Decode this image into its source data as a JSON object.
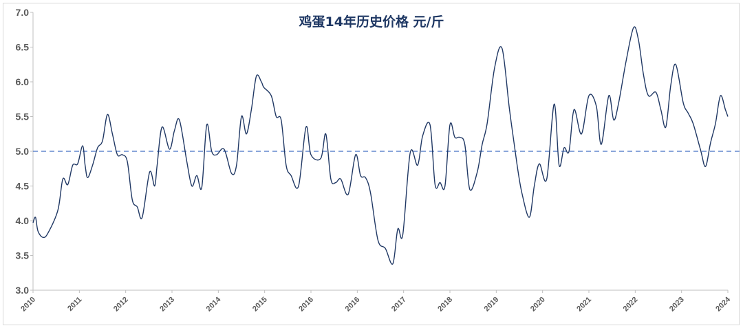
{
  "chart_data": {
    "type": "line",
    "title": "鸡蛋14年历史价格 元/斤",
    "ylim": [
      3.0,
      7.0
    ],
    "y_ticks": [
      "3.0",
      "3.5",
      "4.0",
      "4.5",
      "5.0",
      "5.5",
      "6.0",
      "6.5",
      "7.0"
    ],
    "x_tick_labels": [
      "2010",
      "2011",
      "2012",
      "2013",
      "2014",
      "2015",
      "2016",
      "2016",
      "2017",
      "2018",
      "2019",
      "2020",
      "2021",
      "2022",
      "2023",
      "2024"
    ],
    "reference_line": {
      "y": 5.0,
      "style": "dashed"
    },
    "series": [
      {
        "color": "#203864",
        "x": [
          2010.0,
          2010.05,
          2010.1,
          2010.2,
          2010.3,
          2010.5,
          2010.6,
          2010.7,
          2010.8,
          2010.9,
          2011.0,
          2011.05,
          2011.1,
          2011.2,
          2011.3,
          2011.4,
          2011.5,
          2011.6,
          2011.7,
          2011.8,
          2011.9,
          2012.0,
          2012.1,
          2012.2,
          2012.35,
          2012.45,
          2012.5,
          2012.6,
          2012.75,
          2012.85,
          2012.95,
          2013.1,
          2013.2,
          2013.3,
          2013.4,
          2013.5,
          2013.6,
          2013.7,
          2013.85,
          2014.0,
          2014.1,
          2014.2,
          2014.3,
          2014.4,
          2014.5,
          2014.6,
          2014.65,
          2014.8,
          2014.9,
          2015.0,
          2015.1,
          2015.2,
          2015.35,
          2015.5,
          2015.6,
          2015.8,
          2015.9,
          2016.0,
          2016.1,
          2016.2,
          2016.35,
          2016.5,
          2016.6,
          2016.7,
          2016.8,
          2016.95,
          2017.1,
          2017.25,
          2017.35,
          2017.45,
          2017.6,
          2017.75,
          2017.85,
          2018.0,
          2018.1,
          2018.2,
          2018.3,
          2018.4,
          2018.5,
          2018.6,
          2018.7,
          2018.8,
          2018.95,
          2019.05,
          2019.15,
          2019.3,
          2019.45,
          2019.6,
          2019.75,
          2019.85,
          2020.0,
          2020.1,
          2020.2,
          2020.35,
          2020.5,
          2020.6,
          2020.7,
          2020.8,
          2020.9,
          2021.05,
          2021.2,
          2021.35,
          2021.45,
          2021.6,
          2021.7,
          2021.8,
          2021.95,
          2022.1,
          2022.2,
          2022.3,
          2022.4,
          2022.55,
          2022.65,
          2022.75,
          2022.85,
          2022.95,
          2023.1,
          2023.2,
          2023.3,
          2023.45,
          2023.55,
          2023.65,
          2023.75,
          2023.85,
          2023.95,
          2024.0
        ],
        "values": [
          3.97,
          4.05,
          3.85,
          3.76,
          3.82,
          4.15,
          4.6,
          4.52,
          4.8,
          4.82,
          5.08,
          4.8,
          4.62,
          4.8,
          5.05,
          5.15,
          5.53,
          5.25,
          4.95,
          4.95,
          4.85,
          4.3,
          4.2,
          4.05,
          4.7,
          4.5,
          4.8,
          5.35,
          5.03,
          5.3,
          5.45,
          4.85,
          4.5,
          4.65,
          4.48,
          5.38,
          5.0,
          4.95,
          5.03,
          4.68,
          4.8,
          5.5,
          5.25,
          5.6,
          6.08,
          6.0,
          5.92,
          5.8,
          5.5,
          5.45,
          4.8,
          4.65,
          4.5,
          5.35,
          4.95,
          4.9,
          5.25,
          4.6,
          4.55,
          4.6,
          4.38,
          4.95,
          4.65,
          4.62,
          4.4,
          3.72,
          3.6,
          3.38,
          3.88,
          3.8,
          4.98,
          4.8,
          5.22,
          5.38,
          4.52,
          4.55,
          4.5,
          5.38,
          5.2,
          5.2,
          5.1,
          4.45,
          4.7,
          5.1,
          5.4,
          6.2,
          6.48,
          5.6,
          4.82,
          4.4,
          4.05,
          4.5,
          4.82,
          4.6,
          5.68,
          4.8,
          5.05,
          5.0,
          5.6,
          5.25,
          5.8,
          5.65,
          5.1,
          5.8,
          5.45,
          5.7,
          6.3,
          6.78,
          6.6,
          6.1,
          5.8,
          5.85,
          5.6,
          5.35,
          5.95,
          6.25,
          5.7,
          5.55,
          5.4,
          5.02,
          4.78,
          5.12,
          5.4,
          5.8,
          5.6,
          5.5
        ]
      }
    ]
  }
}
